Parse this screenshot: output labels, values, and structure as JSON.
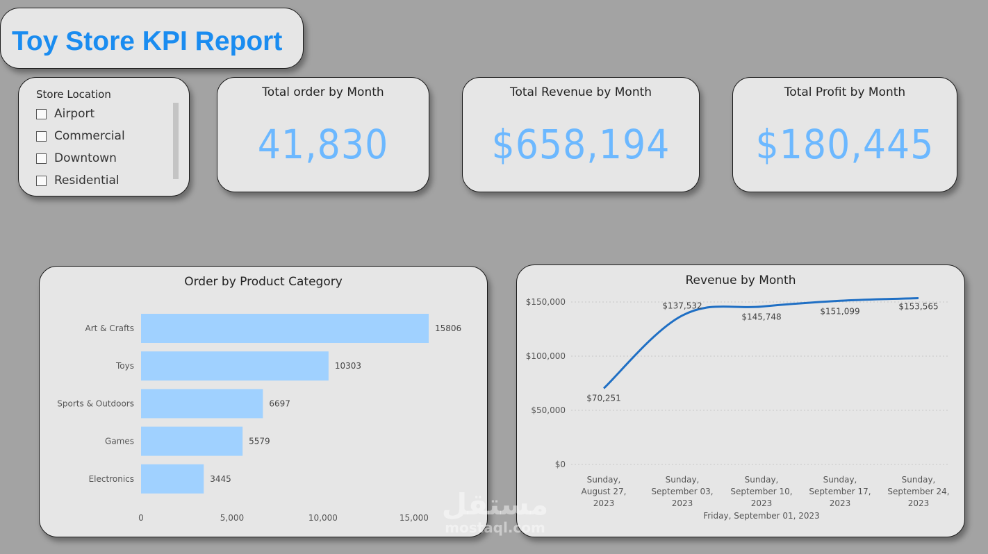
{
  "header": {
    "title": "Toy Store KPI Report"
  },
  "slicer": {
    "title": "Store Location",
    "items": [
      {
        "label": "Airport",
        "checked": false
      },
      {
        "label": "Commercial",
        "checked": false
      },
      {
        "label": "Downtown",
        "checked": false
      },
      {
        "label": "Residential",
        "checked": false
      }
    ]
  },
  "kpis": {
    "orders": {
      "title": "Total order by Month",
      "value": "41,830"
    },
    "revenue": {
      "title": "Total Revenue by Month",
      "value": "$658,194"
    },
    "profit": {
      "title": "Total Profit by Month",
      "value": "$180,445"
    }
  },
  "colors": {
    "title": "#1a8cf0",
    "kpi_value": "#6cb8ff",
    "bar": "#a0d1ff",
    "line": "#1f6fc4"
  },
  "watermark": {
    "logo": "مستقل",
    "url": "mostaql.com"
  },
  "chart_data": [
    {
      "type": "bar",
      "orientation": "horizontal",
      "title": "Order by Product Category",
      "categories": [
        "Art & Crafts",
        "Toys",
        "Sports & Outdoors",
        "Games",
        "Electronics"
      ],
      "values": [
        15806,
        10303,
        6697,
        5579,
        3445
      ],
      "data_labels": [
        "15806",
        "10303",
        "6697",
        "5579",
        "3445"
      ],
      "x_ticks": [
        0,
        5000,
        10000,
        15000
      ],
      "x_tick_labels": [
        "0",
        "5,000",
        "10,000",
        "15,000"
      ],
      "xlim": [
        0,
        15806
      ],
      "grid": false
    },
    {
      "type": "line",
      "title": "Revenue by Month",
      "x_labels": [
        [
          "Sunday,",
          "August 27,",
          "2023"
        ],
        [
          "Sunday,",
          "September 03,",
          "2023"
        ],
        [
          "Sunday,",
          "September 10,",
          "2023"
        ],
        [
          "Sunday,",
          "September 17,",
          "2023"
        ],
        [
          "Sunday,",
          "September 24,",
          "2023"
        ]
      ],
      "x_extra_label": "Friday, September 01, 2023",
      "values": [
        70251,
        137532,
        145748,
        151099,
        153565
      ],
      "data_labels": [
        "$70,251",
        "$137,532",
        "$145,748",
        "$151,099",
        "$153,565"
      ],
      "y_ticks": [
        0,
        50000,
        100000,
        150000
      ],
      "y_tick_labels": [
        "$0",
        "$50,000",
        "$100,000",
        "$150,000"
      ],
      "ylim": [
        0,
        150000
      ],
      "grid": true
    }
  ]
}
